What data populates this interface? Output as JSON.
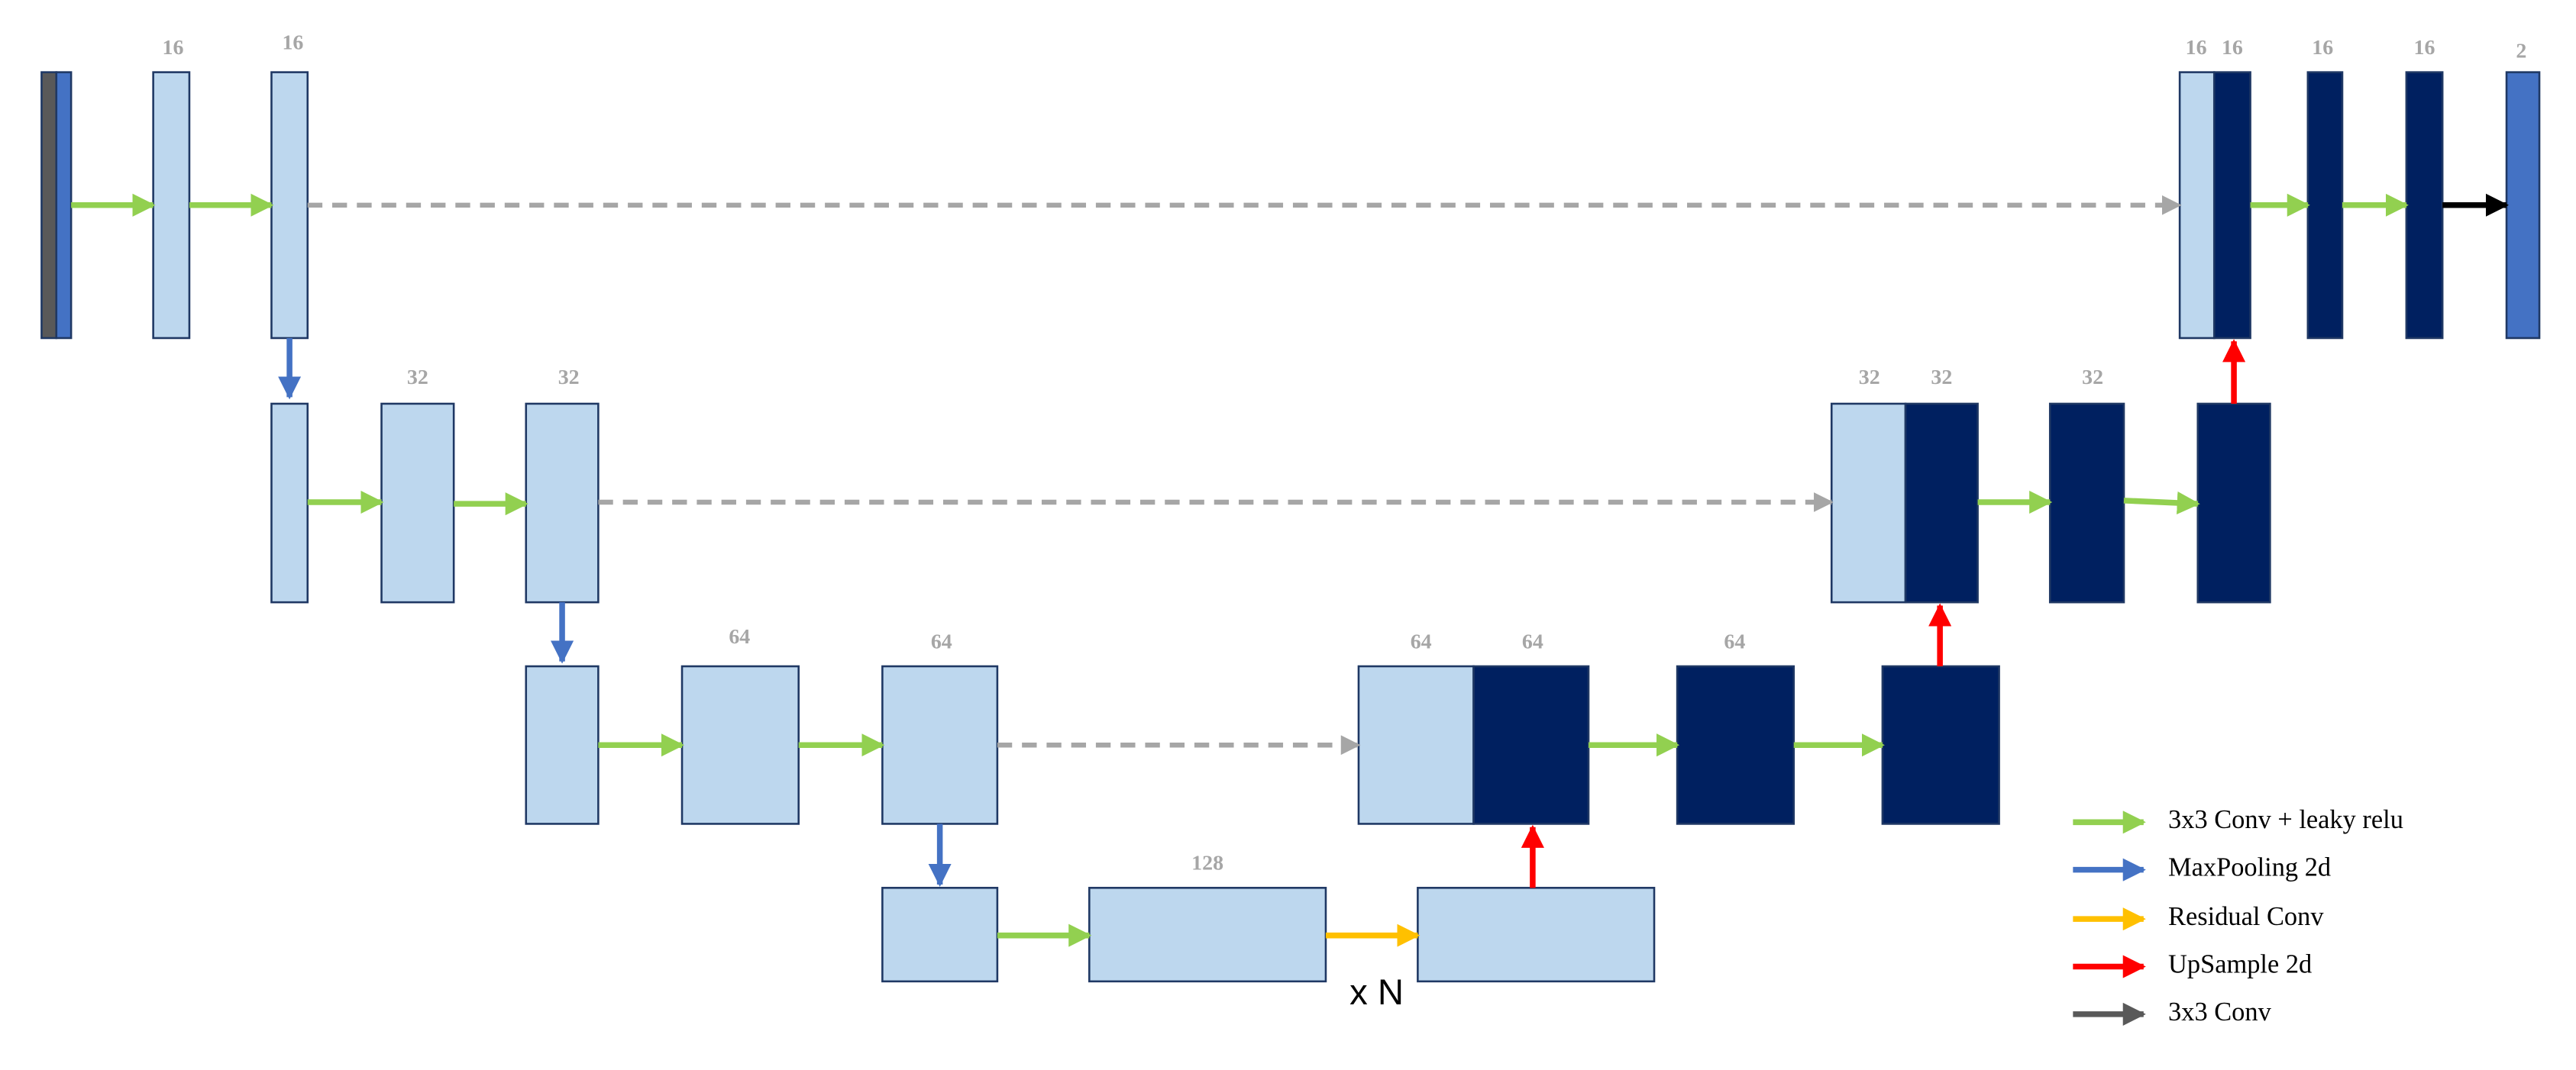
{
  "block_labels": [
    "16",
    "16",
    "32",
    "32",
    "64",
    "64",
    "128",
    "64",
    "64",
    "64",
    "32",
    "32",
    "32",
    "16",
    "16",
    "16",
    "16",
    "2"
  ],
  "repeat_label": "x N",
  "legend": [
    "3x3 Conv + leaky relu",
    "MaxPooling 2d",
    "Residual Conv",
    "UpSample 2d",
    "3x3 Conv"
  ]
}
